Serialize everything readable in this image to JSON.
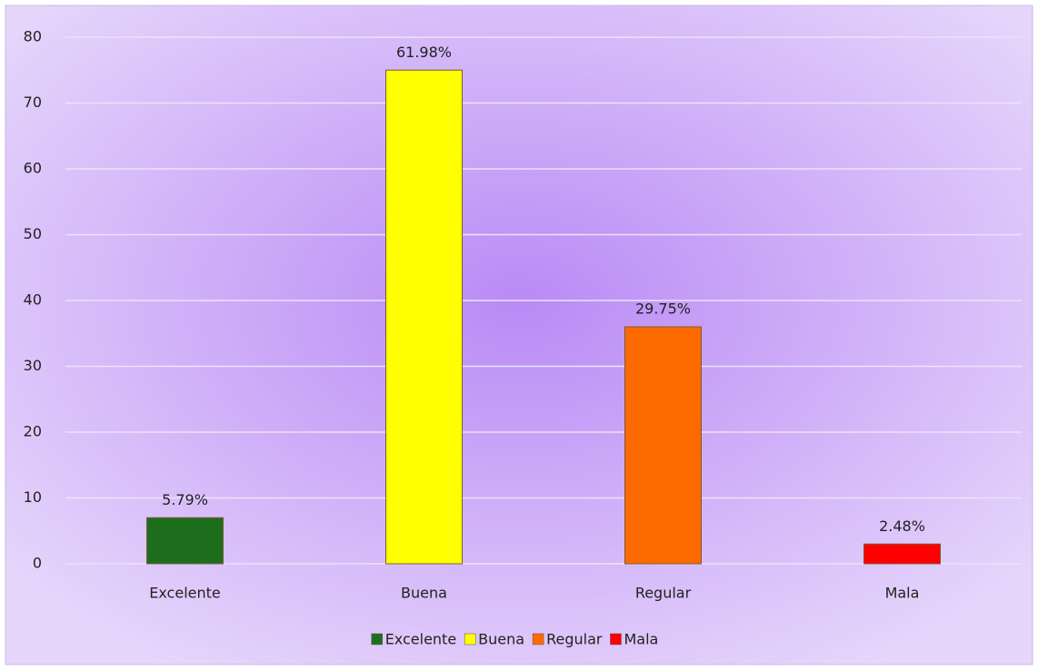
{
  "chart_data": {
    "type": "bar",
    "categories": [
      "Excelente",
      "Buena",
      "Regular",
      "Mala"
    ],
    "values": [
      7,
      75,
      36,
      3
    ],
    "annotations": [
      "5.79%",
      "61.98%",
      "29.75%",
      "2.48%"
    ],
    "colors": [
      "#1f6e1f",
      "#ffff00",
      "#ff6a00",
      "#ff0000"
    ],
    "ylim": [
      0,
      80
    ],
    "yticks": [
      0,
      10,
      20,
      30,
      40,
      50,
      60,
      70,
      80
    ],
    "grid": true,
    "legend": "bottom"
  }
}
